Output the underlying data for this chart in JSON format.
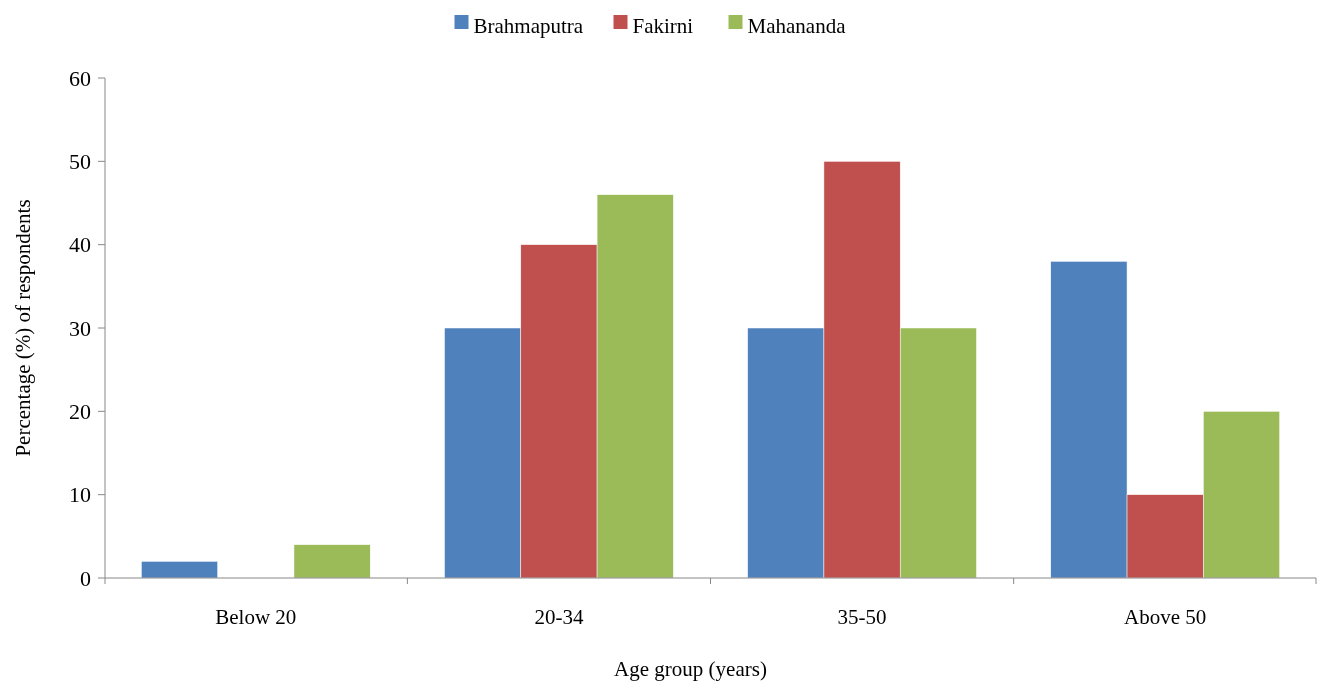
{
  "chart_data": {
    "type": "bar",
    "xlabel": "Age group (years)",
    "ylabel": "Percentage (%) of respondents",
    "categories": [
      "Below 20",
      "20-34",
      "35-50",
      "Above 50"
    ],
    "series": [
      {
        "name": "Brahmaputra",
        "color": "#4f81bd",
        "values": [
          2,
          30,
          30,
          38
        ]
      },
      {
        "name": "Fakirni",
        "color": "#c0504d",
        "values": [
          0,
          40,
          50,
          10
        ]
      },
      {
        "name": "Mahananda",
        "color": "#9bbb59",
        "values": [
          4,
          46,
          30,
          20
        ]
      }
    ],
    "ylim": [
      0,
      60
    ],
    "yticks": [
      0,
      10,
      20,
      30,
      40,
      50,
      60
    ],
    "grid": false,
    "legend": "top"
  }
}
